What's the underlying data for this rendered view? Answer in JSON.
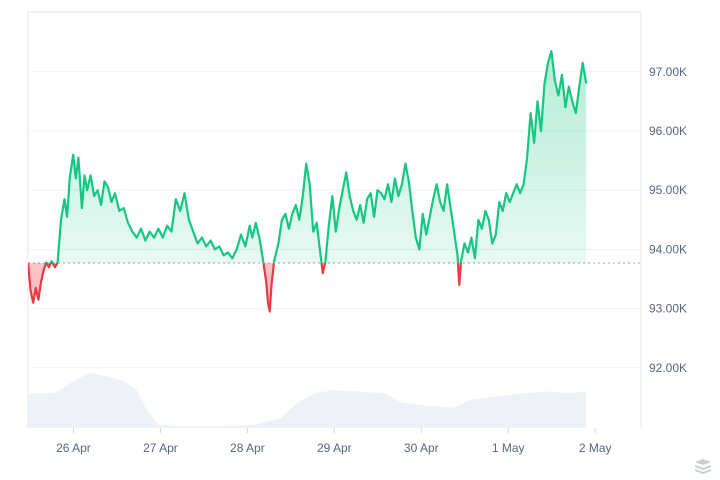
{
  "chart_data": {
    "type": "area",
    "title": "",
    "xlabel": "",
    "ylabel": "",
    "baseline": 93770,
    "ylim": [
      91100,
      97500
    ],
    "y_ticks": [
      {
        "value": 97000,
        "label": "97.00K"
      },
      {
        "value": 96000,
        "label": "96.00K"
      },
      {
        "value": 95000,
        "label": "95.00K"
      },
      {
        "value": 94000,
        "label": "94.00K"
      },
      {
        "value": 93000,
        "label": "93.00K"
      },
      {
        "value": 92000,
        "label": "92.00K"
      }
    ],
    "x_ticks": [
      {
        "value": 0.5,
        "label": "26 Apr"
      },
      {
        "value": 1.5,
        "label": "27 Apr"
      },
      {
        "value": 2.5,
        "label": "28 Apr"
      },
      {
        "value": 3.5,
        "label": "29 Apr"
      },
      {
        "value": 4.5,
        "label": "30 Apr"
      },
      {
        "value": 5.5,
        "label": "1 May"
      },
      {
        "value": 6.5,
        "label": "2 May"
      }
    ],
    "x_range": [
      0,
      7.05
    ],
    "colors": {
      "up": "#16c784",
      "down": "#ea3943",
      "up_fill": "#d9f7ea",
      "down_fill": "#fbd6d8",
      "volume": "#eef1f5",
      "grid": "#eff2f5",
      "baseline": "#9aa3ae"
    },
    "price": [
      [
        0.0,
        93780
      ],
      [
        0.03,
        93300
      ],
      [
        0.06,
        93100
      ],
      [
        0.09,
        93350
      ],
      [
        0.12,
        93150
      ],
      [
        0.15,
        93450
      ],
      [
        0.18,
        93650
      ],
      [
        0.21,
        93780
      ],
      [
        0.24,
        93700
      ],
      [
        0.27,
        93800
      ],
      [
        0.31,
        93700
      ],
      [
        0.34,
        93780
      ],
      [
        0.38,
        94500
      ],
      [
        0.42,
        94850
      ],
      [
        0.45,
        94550
      ],
      [
        0.48,
        95200
      ],
      [
        0.52,
        95600
      ],
      [
        0.55,
        95200
      ],
      [
        0.58,
        95550
      ],
      [
        0.62,
        94700
      ],
      [
        0.65,
        95250
      ],
      [
        0.68,
        95000
      ],
      [
        0.72,
        95250
      ],
      [
        0.76,
        94900
      ],
      [
        0.8,
        95000
      ],
      [
        0.84,
        94750
      ],
      [
        0.88,
        95150
      ],
      [
        0.92,
        95050
      ],
      [
        0.96,
        94800
      ],
      [
        1.0,
        94950
      ],
      [
        1.05,
        94650
      ],
      [
        1.1,
        94700
      ],
      [
        1.15,
        94450
      ],
      [
        1.2,
        94300
      ],
      [
        1.25,
        94200
      ],
      [
        1.3,
        94350
      ],
      [
        1.35,
        94150
      ],
      [
        1.4,
        94300
      ],
      [
        1.45,
        94200
      ],
      [
        1.5,
        94350
      ],
      [
        1.55,
        94200
      ],
      [
        1.6,
        94400
      ],
      [
        1.65,
        94300
      ],
      [
        1.7,
        94850
      ],
      [
        1.75,
        94650
      ],
      [
        1.8,
        94950
      ],
      [
        1.85,
        94500
      ],
      [
        1.9,
        94300
      ],
      [
        1.95,
        94100
      ],
      [
        2.0,
        94200
      ],
      [
        2.05,
        94050
      ],
      [
        2.1,
        94150
      ],
      [
        2.15,
        94000
      ],
      [
        2.2,
        94050
      ],
      [
        2.25,
        93900
      ],
      [
        2.3,
        93950
      ],
      [
        2.35,
        93850
      ],
      [
        2.4,
        94000
      ],
      [
        2.45,
        94250
      ],
      [
        2.5,
        94050
      ],
      [
        2.55,
        94400
      ],
      [
        2.58,
        94200
      ],
      [
        2.62,
        94450
      ],
      [
        2.66,
        94200
      ],
      [
        2.7,
        93850
      ],
      [
        2.74,
        93450
      ],
      [
        2.76,
        93100
      ],
      [
        2.78,
        92950
      ],
      [
        2.8,
        93400
      ],
      [
        2.83,
        93800
      ],
      [
        2.88,
        94100
      ],
      [
        2.92,
        94500
      ],
      [
        2.96,
        94600
      ],
      [
        3.0,
        94350
      ],
      [
        3.04,
        94600
      ],
      [
        3.08,
        94750
      ],
      [
        3.12,
        94500
      ],
      [
        3.16,
        94900
      ],
      [
        3.2,
        95450
      ],
      [
        3.24,
        95100
      ],
      [
        3.28,
        94300
      ],
      [
        3.32,
        94450
      ],
      [
        3.36,
        93950
      ],
      [
        3.39,
        93600
      ],
      [
        3.42,
        93800
      ],
      [
        3.46,
        94400
      ],
      [
        3.5,
        94900
      ],
      [
        3.54,
        94300
      ],
      [
        3.58,
        94700
      ],
      [
        3.62,
        95000
      ],
      [
        3.66,
        95300
      ],
      [
        3.7,
        94900
      ],
      [
        3.74,
        94650
      ],
      [
        3.78,
        94500
      ],
      [
        3.82,
        94750
      ],
      [
        3.86,
        94450
      ],
      [
        3.9,
        94850
      ],
      [
        3.94,
        94950
      ],
      [
        3.98,
        94550
      ],
      [
        4.02,
        95000
      ],
      [
        4.06,
        94950
      ],
      [
        4.1,
        94850
      ],
      [
        4.14,
        95100
      ],
      [
        4.18,
        94800
      ],
      [
        4.22,
        95200
      ],
      [
        4.26,
        94900
      ],
      [
        4.3,
        95100
      ],
      [
        4.34,
        95450
      ],
      [
        4.38,
        95150
      ],
      [
        4.42,
        94650
      ],
      [
        4.46,
        94200
      ],
      [
        4.5,
        94000
      ],
      [
        4.54,
        94600
      ],
      [
        4.58,
        94250
      ],
      [
        4.62,
        94550
      ],
      [
        4.66,
        94850
      ],
      [
        4.7,
        95100
      ],
      [
        4.74,
        94800
      ],
      [
        4.78,
        94650
      ],
      [
        4.82,
        95100
      ],
      [
        4.86,
        94700
      ],
      [
        4.9,
        94300
      ],
      [
        4.94,
        93900
      ],
      [
        4.96,
        93400
      ],
      [
        4.98,
        93800
      ],
      [
        5.02,
        94100
      ],
      [
        5.06,
        93950
      ],
      [
        5.1,
        94200
      ],
      [
        5.14,
        93850
      ],
      [
        5.18,
        94500
      ],
      [
        5.22,
        94350
      ],
      [
        5.26,
        94650
      ],
      [
        5.3,
        94500
      ],
      [
        5.34,
        94100
      ],
      [
        5.38,
        94250
      ],
      [
        5.42,
        94800
      ],
      [
        5.46,
        94650
      ],
      [
        5.5,
        94950
      ],
      [
        5.54,
        94800
      ],
      [
        5.58,
        94950
      ],
      [
        5.62,
        95100
      ],
      [
        5.66,
        94950
      ],
      [
        5.7,
        95100
      ],
      [
        5.74,
        95550
      ],
      [
        5.78,
        96300
      ],
      [
        5.82,
        95800
      ],
      [
        5.86,
        96500
      ],
      [
        5.9,
        96000
      ],
      [
        5.94,
        96800
      ],
      [
        5.98,
        97150
      ],
      [
        6.02,
        97350
      ],
      [
        6.06,
        96850
      ],
      [
        6.1,
        96600
      ],
      [
        6.14,
        96950
      ],
      [
        6.18,
        96400
      ],
      [
        6.22,
        96750
      ],
      [
        6.26,
        96500
      ],
      [
        6.3,
        96300
      ],
      [
        6.34,
        96750
      ],
      [
        6.38,
        97150
      ],
      [
        6.42,
        96800
      ]
    ],
    "volume": [
      [
        0.0,
        0.55
      ],
      [
        0.3,
        0.55
      ],
      [
        0.5,
        0.72
      ],
      [
        0.7,
        0.88
      ],
      [
        0.9,
        0.82
      ],
      [
        1.1,
        0.75
      ],
      [
        1.25,
        0.6
      ],
      [
        1.35,
        0.32
      ],
      [
        1.5,
        0.05
      ],
      [
        1.8,
        0.03
      ],
      [
        2.2,
        0.03
      ],
      [
        2.6,
        0.05
      ],
      [
        2.9,
        0.15
      ],
      [
        3.1,
        0.4
      ],
      [
        3.3,
        0.55
      ],
      [
        3.5,
        0.6
      ],
      [
        3.8,
        0.58
      ],
      [
        4.1,
        0.55
      ],
      [
        4.3,
        0.4
      ],
      [
        4.6,
        0.35
      ],
      [
        4.9,
        0.32
      ],
      [
        5.1,
        0.45
      ],
      [
        5.4,
        0.5
      ],
      [
        5.7,
        0.55
      ],
      [
        6.0,
        0.58
      ],
      [
        6.2,
        0.55
      ],
      [
        6.42,
        0.58
      ]
    ]
  }
}
